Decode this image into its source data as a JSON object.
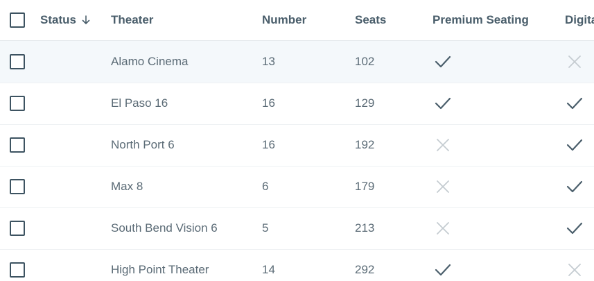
{
  "header": {
    "status": "Status",
    "theater": "Theater",
    "number": "Number",
    "seats": "Seats",
    "premium": "Premium Seating",
    "digital": "Digital"
  },
  "rows": [
    {
      "theater": "Alamo Cinema",
      "number": "13",
      "seats": "102",
      "premium": true,
      "digital": false
    },
    {
      "theater": "El Paso 16",
      "number": "16",
      "seats": "129",
      "premium": true,
      "digital": true
    },
    {
      "theater": "North Port 6",
      "number": "16",
      "seats": "192",
      "premium": false,
      "digital": true
    },
    {
      "theater": "Max 8",
      "number": "6",
      "seats": "179",
      "premium": false,
      "digital": true
    },
    {
      "theater": "South Bend Vision 6",
      "number": "5",
      "seats": "213",
      "premium": false,
      "digital": true
    },
    {
      "theater": "High Point Theater",
      "number": "14",
      "seats": "292",
      "premium": true,
      "digital": false
    }
  ],
  "colors": {
    "check": "#4a5e6b",
    "cross": "#c5ccd1",
    "hover_row": "#f4f8fb"
  },
  "icons": {
    "true": "check-icon",
    "false": "cross-icon",
    "sort": "arrow-down-icon"
  }
}
